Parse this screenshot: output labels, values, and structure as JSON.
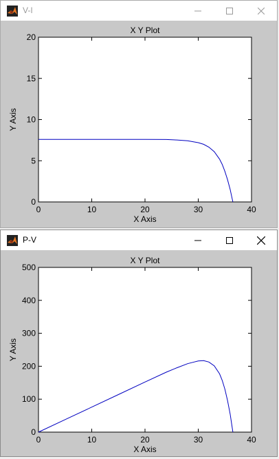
{
  "windows": [
    {
      "title": "V-I",
      "title_active": false,
      "chart_data": {
        "type": "line",
        "title": "X Y Plot",
        "xlabel": "X Axis",
        "ylabel": "Y Axis",
        "xlim": [
          0,
          40
        ],
        "ylim": [
          0,
          20
        ],
        "xticks": [
          "0",
          "10",
          "20",
          "30",
          "40"
        ],
        "yticks": [
          "0",
          "5",
          "10",
          "15",
          "20"
        ],
        "grid": false,
        "line_color": "#0000c0",
        "series": [
          {
            "x": [
              0,
              5,
              10,
              15,
              20,
              24,
              26,
              28,
              30,
              31,
              32,
              33,
              34,
              34.5,
              35,
              35.5,
              36,
              36.3,
              36.5
            ],
            "y": [
              7.6,
              7.6,
              7.6,
              7.6,
              7.6,
              7.58,
              7.52,
              7.42,
              7.2,
              7.0,
              6.65,
              6.1,
              5.2,
              4.55,
              3.7,
              2.7,
              1.5,
              0.6,
              0.0
            ]
          }
        ]
      }
    },
    {
      "title": "P-V",
      "title_active": true,
      "chart_data": {
        "type": "line",
        "title": "X Y Plot",
        "xlabel": "X Axis",
        "ylabel": "Y Axis",
        "xlim": [
          0,
          40
        ],
        "ylim": [
          0,
          500
        ],
        "xticks": [
          "0",
          "10",
          "20",
          "30",
          "40"
        ],
        "yticks": [
          "0",
          "100",
          "200",
          "300",
          "400",
          "500"
        ],
        "grid": false,
        "line_color": "#0000c0",
        "series": [
          {
            "x": [
              0,
              5,
              10,
              15,
              20,
              24,
              26,
              28,
              29,
              30,
              31,
              32,
              33,
              34,
              34.5,
              35,
              35.5,
              36,
              36.3,
              36.5
            ],
            "y": [
              0,
              38,
              76,
              114,
              152,
              182,
              195.5,
              207.8,
              212,
              216,
              217,
              212.8,
              201,
              177,
              157,
              130,
              96,
              54,
              22,
              0
            ]
          }
        ]
      }
    }
  ],
  "colors": {
    "plot_bg": "#c8c8c8",
    "axes_bg": "#ffffff",
    "app_icon_orange": "#e87722",
    "app_icon_dark": "#8b2b10"
  },
  "icons": {
    "app": "matlab-logo-icon",
    "minimize": "minimize-icon",
    "maximize": "maximize-icon",
    "close": "close-icon"
  }
}
